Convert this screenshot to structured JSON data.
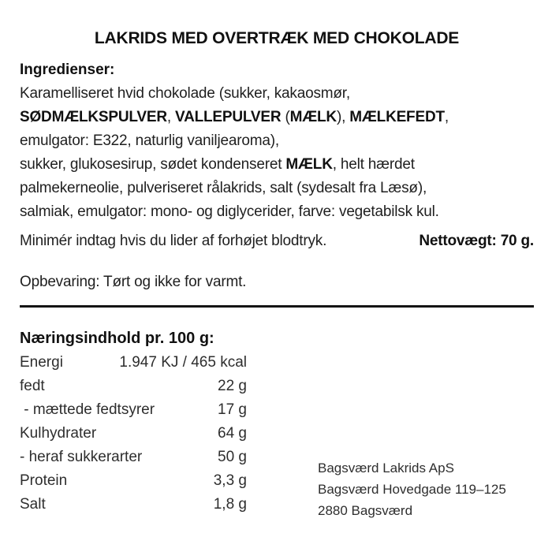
{
  "label": {
    "title": "LAKRIDS MED OVERTRÆK MED CHOKOLADE"
  },
  "ingredients": {
    "heading": "Ingredienser:",
    "lines": [
      [
        {
          "t": "Karamelliseret hvid chokolade (sukker, kakaosmør,",
          "b": false
        }
      ],
      [
        {
          "t": "SØDMÆLKSPULVER",
          "b": true
        },
        {
          "t": ", ",
          "b": false
        },
        {
          "t": "VALLEPULVER",
          "b": true
        },
        {
          "t": " (",
          "b": false
        },
        {
          "t": "MÆLK",
          "b": true
        },
        {
          "t": "), ",
          "b": false
        },
        {
          "t": "MÆLKEFEDT",
          "b": true
        },
        {
          "t": ",",
          "b": false
        }
      ],
      [
        {
          "t": "emulgator: E322, naturlig vaniljearoma),",
          "b": false
        }
      ],
      [
        {
          "t": "sukker, glukosesirup, sødet kondenseret ",
          "b": false
        },
        {
          "t": "MÆLK",
          "b": true
        },
        {
          "t": ", helt hærdet",
          "b": false
        }
      ],
      [
        {
          "t": "palmekerneolie, pulveriseret rålakrids, salt (sydesalt fra Læsø),",
          "b": false
        }
      ],
      [
        {
          "t": "salmiak, emulgator: mono- og diglycerider, farve: vegetabilsk kul.",
          "b": false
        }
      ]
    ]
  },
  "warning": {
    "text": "Minimér indtag hvis du lider af forhøjet blodtryk.",
    "net_weight": "Nettovægt: 70 g."
  },
  "storage": {
    "text": "Opbevaring: Tørt og ikke for varmt."
  },
  "nutrition": {
    "heading": "Næringsindhold pr. 100 g:",
    "rows": [
      {
        "label": "Energi",
        "value": "1.947 KJ / 465 kcal"
      },
      {
        "label": "fedt",
        "value": "22 g"
      },
      {
        "label": " - mættede fedtsyrer",
        "value": "17 g"
      },
      {
        "label": "Kulhydrater",
        "value": "64 g"
      },
      {
        "label": "- heraf sukkerarter",
        "value": "50 g"
      },
      {
        "label": "Protein",
        "value": "3,3 g"
      },
      {
        "label": "Salt",
        "value": "1,8 g"
      }
    ]
  },
  "manufacturer": {
    "lines": [
      "Bagsværd Lakrids ApS",
      "Bagsværd Hovedgade 119–125",
      "2880 Bagsværd"
    ]
  },
  "colors": {
    "text": "#1f1f1f",
    "bold_text": "#111111",
    "rule": "#141414",
    "background": "#ffffff"
  }
}
